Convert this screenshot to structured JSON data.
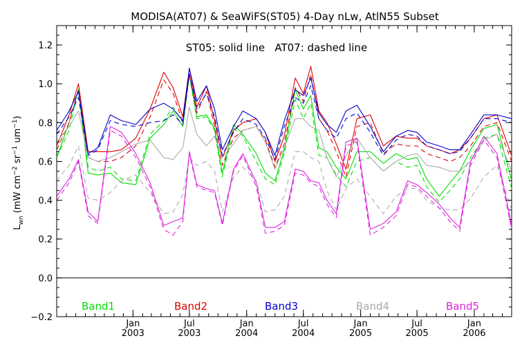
{
  "chart_data": {
    "type": "line",
    "title": "MODISA(AT07) & SeaWiFS(ST05) 4-Day nLw, AtlN55 Subset",
    "annotation": "ST05: solid line   AT07: dashed line",
    "ylabel": "L_wn (mW cm⁻² sr⁻¹ um⁻¹)",
    "ylabel_parts": {
      "base": "L",
      "sub": "wn",
      "unit_open": " (mW cm",
      "exp1": "−2",
      "mid1": " sr",
      "exp2": "−1",
      "mid2": " um",
      "exp3": "−1",
      "unit_close": ")"
    },
    "xlim": [
      "2002-05-01",
      "2006-05-01"
    ],
    "ylim": [
      -0.2,
      1.3
    ],
    "yticks": [
      {
        "value": -0.2,
        "label": "−0.2"
      },
      {
        "value": 0.0,
        "label": "0.0"
      },
      {
        "value": 0.2,
        "label": "0.2"
      },
      {
        "value": 0.4,
        "label": "0.4"
      },
      {
        "value": 0.6,
        "label": "0.6"
      },
      {
        "value": 0.8,
        "label": "0.8"
      },
      {
        "value": 1.0,
        "label": "1.0"
      },
      {
        "value": 1.2,
        "label": "1.2"
      }
    ],
    "xticks": [
      {
        "date": "2003-01-01",
        "label1": "Jan",
        "label2": "2003"
      },
      {
        "date": "2003-07-01",
        "label1": "Jul",
        "label2": "2003"
      },
      {
        "date": "2004-01-01",
        "label1": "Jan",
        "label2": "2004"
      },
      {
        "date": "2004-07-01",
        "label1": "Jul",
        "label2": "2004"
      },
      {
        "date": "2005-01-01",
        "label1": "Jan",
        "label2": "2005"
      },
      {
        "date": "2005-07-01",
        "label1": "Jul",
        "label2": "2005"
      },
      {
        "date": "2006-01-01",
        "label1": "Jan",
        "label2": "2006"
      }
    ],
    "x": [
      "2002-05-01",
      "2002-06-10",
      "2002-07-10",
      "2002-08-10",
      "2002-09-10",
      "2002-10-20",
      "2002-11-25",
      "2003-01-10",
      "2003-02-25",
      "2003-04-10",
      "2003-05-10",
      "2003-06-10",
      "2003-07-01",
      "2003-07-25",
      "2003-08-25",
      "2003-09-20",
      "2003-10-15",
      "2003-11-20",
      "2003-12-20",
      "2004-02-01",
      "2004-03-01",
      "2004-04-01",
      "2004-05-01",
      "2004-06-05",
      "2004-07-01",
      "2004-07-25",
      "2004-08-20",
      "2004-09-15",
      "2004-10-15",
      "2004-11-15",
      "2004-12-20",
      "2005-02-01",
      "2005-03-15",
      "2005-04-25",
      "2005-06-01",
      "2005-07-01",
      "2005-08-01",
      "2005-09-10",
      "2005-10-15",
      "2005-11-15",
      "2005-12-20",
      "2006-02-01",
      "2006-03-15",
      "2006-05-01"
    ],
    "series": [
      {
        "name": "Band1",
        "color": "#00dd00",
        "style": "solid",
        "values": [
          0.62,
          0.8,
          0.97,
          0.54,
          0.53,
          0.54,
          0.49,
          0.48,
          0.72,
          0.79,
          0.86,
          0.78,
          1.05,
          0.83,
          0.84,
          0.77,
          0.54,
          0.79,
          0.74,
          0.64,
          0.54,
          0.5,
          0.66,
          0.97,
          0.87,
          0.94,
          0.67,
          0.65,
          0.57,
          0.51,
          0.65,
          0.65,
          0.59,
          0.64,
          0.61,
          0.62,
          0.51,
          0.42,
          0.49,
          0.55,
          0.66,
          0.77,
          0.79,
          0.5
        ]
      },
      {
        "name": "Band1",
        "color": "#00dd00",
        "style": "dashed",
        "values": [
          0.62,
          0.76,
          0.98,
          0.57,
          0.55,
          0.57,
          0.51,
          0.5,
          0.74,
          0.81,
          0.88,
          0.8,
          1.04,
          0.82,
          0.83,
          0.76,
          0.52,
          0.77,
          0.73,
          0.6,
          0.51,
          0.48,
          0.64,
          0.92,
          0.82,
          0.9,
          0.63,
          0.62,
          0.53,
          0.47,
          0.6,
          0.62,
          0.55,
          0.6,
          0.57,
          0.58,
          0.47,
          0.39,
          0.45,
          0.51,
          0.62,
          0.72,
          0.74,
          0.46
        ]
      },
      {
        "name": "Band2",
        "color": "#dd0000",
        "style": "solid",
        "values": [
          0.68,
          0.84,
          1.0,
          0.65,
          0.65,
          0.65,
          0.66,
          0.72,
          0.87,
          1.06,
          0.98,
          0.83,
          1.08,
          0.88,
          0.99,
          0.81,
          0.62,
          0.76,
          0.8,
          0.82,
          0.75,
          0.6,
          0.73,
          1.03,
          0.95,
          1.09,
          0.86,
          0.8,
          0.69,
          0.56,
          0.82,
          0.84,
          0.68,
          0.73,
          0.72,
          0.72,
          0.68,
          0.66,
          0.64,
          0.66,
          0.72,
          0.82,
          0.84,
          0.63
        ]
      },
      {
        "name": "Band2",
        "color": "#dd0000",
        "style": "dashed",
        "values": [
          0.66,
          0.8,
          0.97,
          0.62,
          0.6,
          0.6,
          0.62,
          0.68,
          0.83,
          1.02,
          0.95,
          0.8,
          1.05,
          0.85,
          0.96,
          0.78,
          0.58,
          0.72,
          0.76,
          0.78,
          0.71,
          0.57,
          0.69,
          0.98,
          0.91,
          1.05,
          0.82,
          0.76,
          0.65,
          0.52,
          0.78,
          0.8,
          0.64,
          0.69,
          0.68,
          0.68,
          0.64,
          0.62,
          0.6,
          0.62,
          0.68,
          0.78,
          0.8,
          0.6
        ]
      },
      {
        "name": "Band3",
        "color": "#0000cc",
        "style": "solid",
        "values": [
          0.76,
          0.86,
          0.96,
          0.64,
          0.67,
          0.84,
          0.81,
          0.79,
          0.87,
          0.9,
          0.87,
          0.81,
          1.08,
          0.91,
          0.99,
          0.87,
          0.66,
          0.78,
          0.86,
          0.82,
          0.75,
          0.63,
          0.81,
          0.97,
          0.94,
          1.03,
          0.85,
          0.79,
          0.75,
          0.86,
          0.89,
          0.78,
          0.65,
          0.73,
          0.76,
          0.75,
          0.7,
          0.68,
          0.66,
          0.66,
          0.74,
          0.84,
          0.84,
          0.82
        ]
      },
      {
        "name": "Band3",
        "color": "#0000cc",
        "style": "dashed",
        "values": [
          0.74,
          0.83,
          0.93,
          0.63,
          0.66,
          0.81,
          0.79,
          0.78,
          0.8,
          0.81,
          0.84,
          0.79,
          1.05,
          0.87,
          0.95,
          0.83,
          0.63,
          0.75,
          0.82,
          0.79,
          0.72,
          0.61,
          0.78,
          0.93,
          0.9,
          0.99,
          0.82,
          0.76,
          0.72,
          0.82,
          0.85,
          0.75,
          0.63,
          0.71,
          0.74,
          0.73,
          0.68,
          0.66,
          0.64,
          0.65,
          0.72,
          0.82,
          0.82,
          0.8
        ]
      },
      {
        "name": "Band4",
        "color": "#aaaaaa",
        "style": "solid",
        "values": [
          0.7,
          0.78,
          0.86,
          0.62,
          0.6,
          0.62,
          0.65,
          0.69,
          0.71,
          0.62,
          0.61,
          0.67,
          0.88,
          0.74,
          0.68,
          0.73,
          0.62,
          0.69,
          0.76,
          0.78,
          0.7,
          0.56,
          0.67,
          0.82,
          0.82,
          0.78,
          0.76,
          0.62,
          0.52,
          0.63,
          0.72,
          0.62,
          0.55,
          0.6,
          0.63,
          0.64,
          0.58,
          0.57,
          0.55,
          0.55,
          0.6,
          0.71,
          0.74,
          0.55
        ]
      },
      {
        "name": "Band4",
        "color": "#aaaaaa",
        "style": "dashed",
        "values": [
          0.5,
          0.58,
          0.68,
          0.41,
          0.4,
          0.44,
          0.5,
          0.53,
          0.44,
          0.33,
          0.34,
          0.43,
          0.62,
          0.58,
          0.6,
          0.55,
          0.34,
          0.52,
          0.57,
          0.5,
          0.34,
          0.35,
          0.42,
          0.65,
          0.65,
          0.62,
          0.6,
          0.45,
          0.35,
          0.46,
          0.51,
          0.42,
          0.33,
          0.42,
          0.46,
          0.46,
          0.4,
          0.36,
          0.35,
          0.35,
          0.41,
          0.52,
          0.58,
          0.35
        ]
      },
      {
        "name": "Band5",
        "color": "#dd22dd",
        "style": "solid",
        "values": [
          0.42,
          0.51,
          0.61,
          0.34,
          0.29,
          0.78,
          0.75,
          0.64,
          0.49,
          0.27,
          0.29,
          0.31,
          0.65,
          0.48,
          0.46,
          0.45,
          0.28,
          0.56,
          0.64,
          0.49,
          0.26,
          0.26,
          0.29,
          0.56,
          0.55,
          0.5,
          0.49,
          0.4,
          0.33,
          0.7,
          0.72,
          0.25,
          0.28,
          0.34,
          0.5,
          0.48,
          0.44,
          0.38,
          0.31,
          0.26,
          0.6,
          0.73,
          0.64,
          0.27
        ]
      },
      {
        "name": "Band5",
        "color": "#dd22dd",
        "style": "dashed",
        "values": [
          0.4,
          0.49,
          0.6,
          0.32,
          0.28,
          0.76,
          0.73,
          0.62,
          0.47,
          0.25,
          0.22,
          0.29,
          0.64,
          0.47,
          0.45,
          0.44,
          0.27,
          0.55,
          0.63,
          0.47,
          0.23,
          0.24,
          0.27,
          0.54,
          0.53,
          0.49,
          0.47,
          0.38,
          0.31,
          0.68,
          0.7,
          0.22,
          0.26,
          0.32,
          0.48,
          0.47,
          0.42,
          0.36,
          0.29,
          0.24,
          0.58,
          0.71,
          0.62,
          0.25
        ]
      }
    ],
    "legend": [
      {
        "label": "Band1",
        "color": "#00dd00"
      },
      {
        "label": "Band2",
        "color": "#dd0000"
      },
      {
        "label": "Band3",
        "color": "#0000cc"
      },
      {
        "label": "Band4",
        "color": "#aaaaaa"
      },
      {
        "label": "Band5",
        "color": "#dd22dd"
      }
    ],
    "legend_placement": "bottom",
    "zero_line": 0.0,
    "grid": false
  }
}
